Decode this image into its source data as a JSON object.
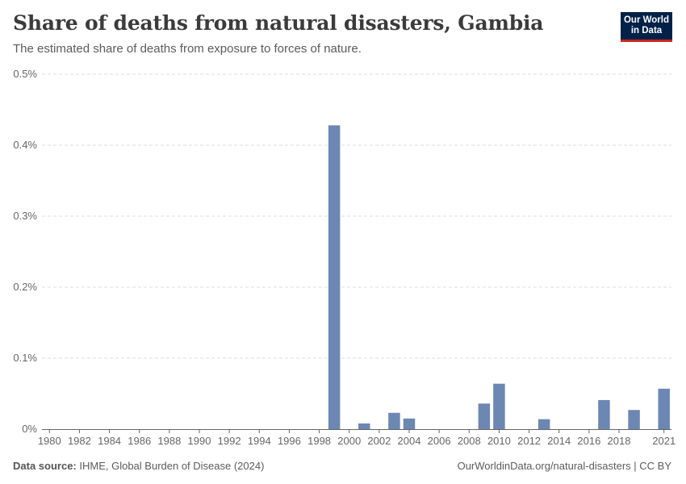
{
  "header": {
    "title": "Share of deaths from natural disasters, Gambia",
    "subtitle": "The estimated share of deaths from exposure to forces of nature.",
    "logo_line1": "Our World",
    "logo_line2": "in Data"
  },
  "footer": {
    "source_label": "Data source:",
    "source_text": "IHME, Global Burden of Disease (2024)",
    "url": "OurWorldinData.org/natural-disasters",
    "separator": " | ",
    "license": "CC BY"
  },
  "colors": {
    "bar": "#6d87b3",
    "grid": "#dddddd",
    "axis": "#666666",
    "tick_text": "#666666",
    "logo_bg": "#002147",
    "logo_accent": "#ce261e"
  },
  "chart_data": {
    "type": "bar",
    "title": "Share of deaths from natural disasters, Gambia",
    "xlabel": "",
    "ylabel": "",
    "ylim": [
      0,
      0.5
    ],
    "y_unit": "%",
    "y_ticks": [
      0,
      0.1,
      0.2,
      0.3,
      0.4,
      0.5
    ],
    "y_tick_labels": [
      "0%",
      "0.1%",
      "0.2%",
      "0.3%",
      "0.4%",
      "0.5%"
    ],
    "x_range": [
      1980,
      2021
    ],
    "x_ticks": [
      1980,
      1982,
      1984,
      1986,
      1988,
      1990,
      1992,
      1994,
      1996,
      1998,
      2000,
      2002,
      2004,
      2006,
      2008,
      2010,
      2012,
      2014,
      2016,
      2018,
      2021
    ],
    "grid": "horizontal-dashed",
    "series": [
      {
        "name": "Gambia",
        "years": [
          1999,
          2001,
          2003,
          2004,
          2009,
          2010,
          2013,
          2017,
          2019,
          2021
        ],
        "values": [
          0.428,
          0.008,
          0.023,
          0.015,
          0.036,
          0.064,
          0.014,
          0.041,
          0.027,
          0.057
        ]
      }
    ]
  }
}
